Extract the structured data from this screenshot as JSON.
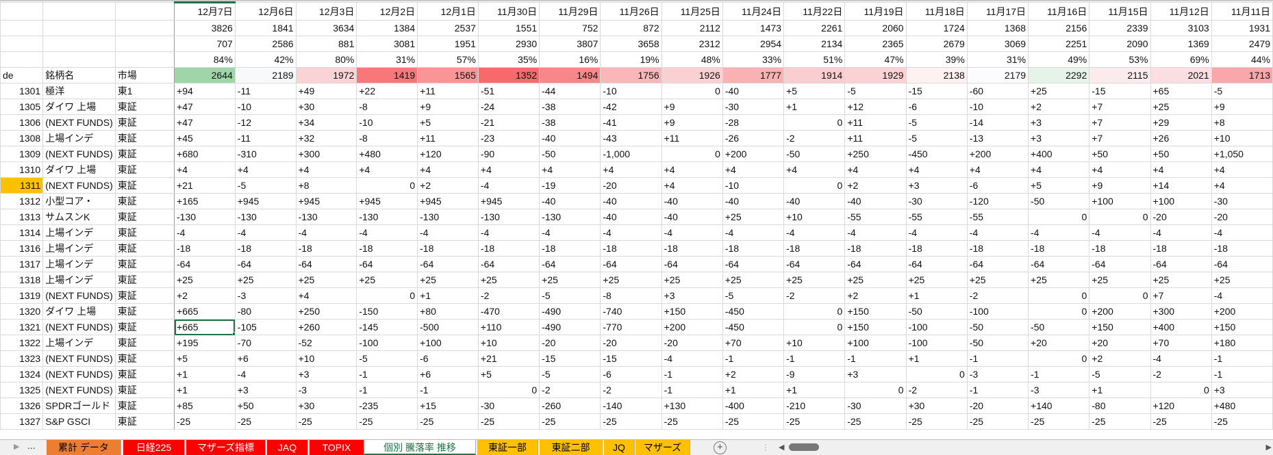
{
  "header": {
    "code_label": "de",
    "name_label": "銘柄名",
    "market_label": "市場",
    "dates": [
      "12月7日",
      "12月6日",
      "12月3日",
      "12月2日",
      "12月1日",
      "11月30日",
      "11月29日",
      "11月26日",
      "11月25日",
      "11月24日",
      "11月22日",
      "11月19日",
      "11月18日",
      "11月17日",
      "11月16日",
      "11月15日",
      "11月12日",
      "11月11日"
    ],
    "values_a": [
      "3826",
      "1841",
      "3634",
      "1384",
      "2537",
      "1551",
      "752",
      "872",
      "2112",
      "1473",
      "2261",
      "2060",
      "1724",
      "1368",
      "2156",
      "2339",
      "3103",
      "1931"
    ],
    "values_b": [
      "707",
      "2586",
      "881",
      "3081",
      "1951",
      "2930",
      "3807",
      "3658",
      "2312",
      "2954",
      "2134",
      "2365",
      "2679",
      "3069",
      "2251",
      "2090",
      "1369",
      "2479"
    ],
    "percents": [
      "84%",
      "42%",
      "80%",
      "31%",
      "57%",
      "35%",
      "16%",
      "19%",
      "48%",
      "33%",
      "51%",
      "47%",
      "39%",
      "31%",
      "49%",
      "53%",
      "69%",
      "44%"
    ],
    "totals": [
      "2644",
      "2189",
      "1972",
      "1419",
      "1565",
      "1352",
      "1494",
      "1756",
      "1926",
      "1777",
      "1914",
      "1929",
      "2138",
      "2179",
      "2292",
      "2115",
      "2021",
      "1713"
    ],
    "total_colors": [
      "#9fd5a9",
      "#f8f9fb",
      "#fad3d6",
      "#f8787a",
      "#f99497",
      "#f8696b",
      "#f8878a",
      "#fab6b8",
      "#fbd0d3",
      "#f9b1b4",
      "#faced0",
      "#fbd2d4",
      "#fdf1f2",
      "#fcfcff",
      "#e5f3e9",
      "#fcebed",
      "#fbdee1",
      "#f9a7aa"
    ]
  },
  "highlight_color": "#ffc000",
  "rows": [
    {
      "code": "1301",
      "name": "極洋",
      "market": "東1",
      "v": [
        "+94",
        "-11",
        "+49",
        "+22",
        "+11",
        "-51",
        "-44",
        "-10",
        "0",
        "-40",
        "+5",
        "-5",
        "-15",
        "-60",
        "+25",
        "-15",
        "+65",
        "-5"
      ]
    },
    {
      "code": "1305",
      "name": "ダイワ 上場",
      "market": "東証",
      "v": [
        "+47",
        "-10",
        "+30",
        "-8",
        "+9",
        "-24",
        "-38",
        "-42",
        "+9",
        "-30",
        "+1",
        "+12",
        "-6",
        "-10",
        "+2",
        "+7",
        "+25",
        "+9"
      ]
    },
    {
      "code": "1306",
      "name": "(NEXT FUNDS)",
      "market": "東証",
      "v": [
        "+47",
        "-12",
        "+34",
        "-10",
        "+5",
        "-21",
        "-38",
        "-41",
        "+9",
        "-28",
        "0",
        "+11",
        "-5",
        "-14",
        "+3",
        "+7",
        "+29",
        "+8"
      ]
    },
    {
      "code": "1308",
      "name": "上場インデ",
      "market": "東証",
      "v": [
        "+45",
        "-11",
        "+32",
        "-8",
        "+11",
        "-23",
        "-40",
        "-43",
        "+11",
        "-26",
        "-2",
        "+11",
        "-5",
        "-13",
        "+3",
        "+7",
        "+26",
        "+10"
      ]
    },
    {
      "code": "1309",
      "name": "(NEXT FUNDS)",
      "market": "東証",
      "v": [
        "+680",
        "-310",
        "+300",
        "+480",
        "+120",
        "-90",
        "-50",
        "-1,000",
        "0",
        "+200",
        "-50",
        "+250",
        "-450",
        "+200",
        "+400",
        "+50",
        "+50",
        "+1,050"
      ]
    },
    {
      "code": "1310",
      "name": "ダイワ 上場",
      "market": "東証",
      "v": [
        "+4",
        "+4",
        "+4",
        "+4",
        "+4",
        "+4",
        "+4",
        "+4",
        "+4",
        "+4",
        "+4",
        "+4",
        "+4",
        "+4",
        "+4",
        "+4",
        "+4",
        "+4"
      ]
    },
    {
      "code": "1311",
      "name": "(NEXT FUNDS)",
      "market": "東証",
      "highlight": true,
      "v": [
        "+21",
        "-5",
        "+8",
        "0",
        "+2",
        "-4",
        "-19",
        "-20",
        "+4",
        "-10",
        "0",
        "+2",
        "+3",
        "-6",
        "+5",
        "+9",
        "+14",
        "+4"
      ]
    },
    {
      "code": "1312",
      "name": "小型コア・",
      "market": "東証",
      "v": [
        "+165",
        "+945",
        "+945",
        "+945",
        "+945",
        "+945",
        "-40",
        "-40",
        "-40",
        "-40",
        "-40",
        "-40",
        "-30",
        "-120",
        "-50",
        "+100",
        "+100",
        "-30"
      ]
    },
    {
      "code": "1313",
      "name": "サムスンK",
      "market": "東証",
      "v": [
        "-130",
        "-130",
        "-130",
        "-130",
        "-130",
        "-130",
        "-130",
        "-40",
        "-40",
        "+25",
        "+10",
        "-55",
        "-55",
        "-55",
        "0",
        "0",
        "-20",
        "-20"
      ]
    },
    {
      "code": "1314",
      "name": "上場インデ",
      "market": "東証",
      "v": [
        "-4",
        "-4",
        "-4",
        "-4",
        "-4",
        "-4",
        "-4",
        "-4",
        "-4",
        "-4",
        "-4",
        "-4",
        "-4",
        "-4",
        "-4",
        "-4",
        "-4",
        "-4"
      ]
    },
    {
      "code": "1316",
      "name": "上場インデ",
      "market": "東証",
      "v": [
        "-18",
        "-18",
        "-18",
        "-18",
        "-18",
        "-18",
        "-18",
        "-18",
        "-18",
        "-18",
        "-18",
        "-18",
        "-18",
        "-18",
        "-18",
        "-18",
        "-18",
        "-18"
      ]
    },
    {
      "code": "1317",
      "name": "上場インデ",
      "market": "東証",
      "v": [
        "-64",
        "-64",
        "-64",
        "-64",
        "-64",
        "-64",
        "-64",
        "-64",
        "-64",
        "-64",
        "-64",
        "-64",
        "-64",
        "-64",
        "-64",
        "-64",
        "-64",
        "-64"
      ]
    },
    {
      "code": "1318",
      "name": "上場インデ",
      "market": "東証",
      "v": [
        "+25",
        "+25",
        "+25",
        "+25",
        "+25",
        "+25",
        "+25",
        "+25",
        "+25",
        "+25",
        "+25",
        "+25",
        "+25",
        "+25",
        "+25",
        "+25",
        "+25",
        "+25"
      ]
    },
    {
      "code": "1319",
      "name": "(NEXT FUNDS)",
      "market": "東証",
      "v": [
        "+2",
        "-3",
        "+4",
        "0",
        "+1",
        "-2",
        "-5",
        "-8",
        "+3",
        "-5",
        "-2",
        "+2",
        "+1",
        "-2",
        "0",
        "0",
        "+7",
        "-4"
      ]
    },
    {
      "code": "1320",
      "name": "ダイワ 上場",
      "market": "東証",
      "v": [
        "+665",
        "-80",
        "+250",
        "-150",
        "+80",
        "-470",
        "-490",
        "-740",
        "+150",
        "-450",
        "0",
        "+150",
        "-50",
        "-100",
        "0",
        "+200",
        "+300",
        "+200"
      ]
    },
    {
      "code": "1321",
      "name": "(NEXT FUNDS)",
      "market": "東証",
      "v": [
        "+665",
        "-105",
        "+260",
        "-145",
        "-500",
        "+110",
        "-490",
        "-770",
        "+200",
        "-450",
        "0",
        "+150",
        "-100",
        "-50",
        "-50",
        "+150",
        "+400",
        "+150"
      ]
    },
    {
      "code": "1322",
      "name": "上場インデ",
      "market": "東証",
      "v": [
        "+195",
        "-70",
        "-52",
        "-100",
        "+100",
        "+10",
        "-20",
        "-20",
        "-20",
        "+70",
        "+10",
        "+100",
        "-100",
        "-50",
        "+20",
        "+20",
        "+70",
        "+180"
      ]
    },
    {
      "code": "1323",
      "name": "(NEXT FUNDS)",
      "market": "東証",
      "v": [
        "+5",
        "+6",
        "+10",
        "-5",
        "-6",
        "+21",
        "-15",
        "-15",
        "-4",
        "-1",
        "-1",
        "-1",
        "+1",
        "-1",
        "0",
        "+2",
        "-4",
        "-1"
      ]
    },
    {
      "code": "1324",
      "name": "(NEXT FUNDS)",
      "market": "東証",
      "v": [
        "+1",
        "-4",
        "+3",
        "-1",
        "+6",
        "+5",
        "-5",
        "-6",
        "-1",
        "+2",
        "-9",
        "+3",
        "0",
        "-3",
        "-1",
        "-5",
        "-2",
        "-1"
      ]
    },
    {
      "code": "1325",
      "name": "(NEXT FUNDS)",
      "market": "東証",
      "v": [
        "+1",
        "+3",
        "-3",
        "-1",
        "-1",
        "0",
        "-2",
        "-2",
        "-1",
        "+1",
        "+1",
        "0",
        "-2",
        "-1",
        "-3",
        "+1",
        "0",
        "+3"
      ]
    },
    {
      "code": "1326",
      "name": "SPDRゴールド",
      "market": "東証",
      "v": [
        "+85",
        "+50",
        "+30",
        "-235",
        "+15",
        "-30",
        "-260",
        "-140",
        "+130",
        "-400",
        "-210",
        "-30",
        "+30",
        "-20",
        "+140",
        "-80",
        "+120",
        "+480"
      ]
    },
    {
      "code": "1327",
      "name": "S&P GSCI",
      "market": "東証",
      "v": [
        "-25",
        "-25",
        "-25",
        "-25",
        "-25",
        "-25",
        "-25",
        "-25",
        "-25",
        "-25",
        "-25",
        "-25",
        "-25",
        "-25",
        "-25",
        "-25",
        "-25",
        "-25"
      ]
    }
  ],
  "sheet_tabs": [
    {
      "label": "累計 データ",
      "color": "#ed7d31",
      "text": "#000"
    },
    {
      "label": "日経225",
      "color": "#ff0000",
      "text": "#fff"
    },
    {
      "label": "マザーズ指標",
      "color": "#ff0000",
      "text": "#fff"
    },
    {
      "label": "JAQ",
      "color": "#ff0000",
      "text": "#fff"
    },
    {
      "label": "TOPIX",
      "color": "#ff0000",
      "text": "#fff"
    },
    {
      "label": "個別 騰落率 推移",
      "color": "#ffffff",
      "text": "#217346",
      "active": true
    },
    {
      "label": "東証一部",
      "color": "#ffc000",
      "text": "#000"
    },
    {
      "label": "東証二部",
      "color": "#ffc000",
      "text": "#000"
    },
    {
      "label": "JQ",
      "color": "#ffc000",
      "text": "#000"
    },
    {
      "label": "マザーズ",
      "color": "#ffc000",
      "text": "#000"
    }
  ],
  "tabbar": {
    "more_label": "...",
    "add_label": "+"
  }
}
